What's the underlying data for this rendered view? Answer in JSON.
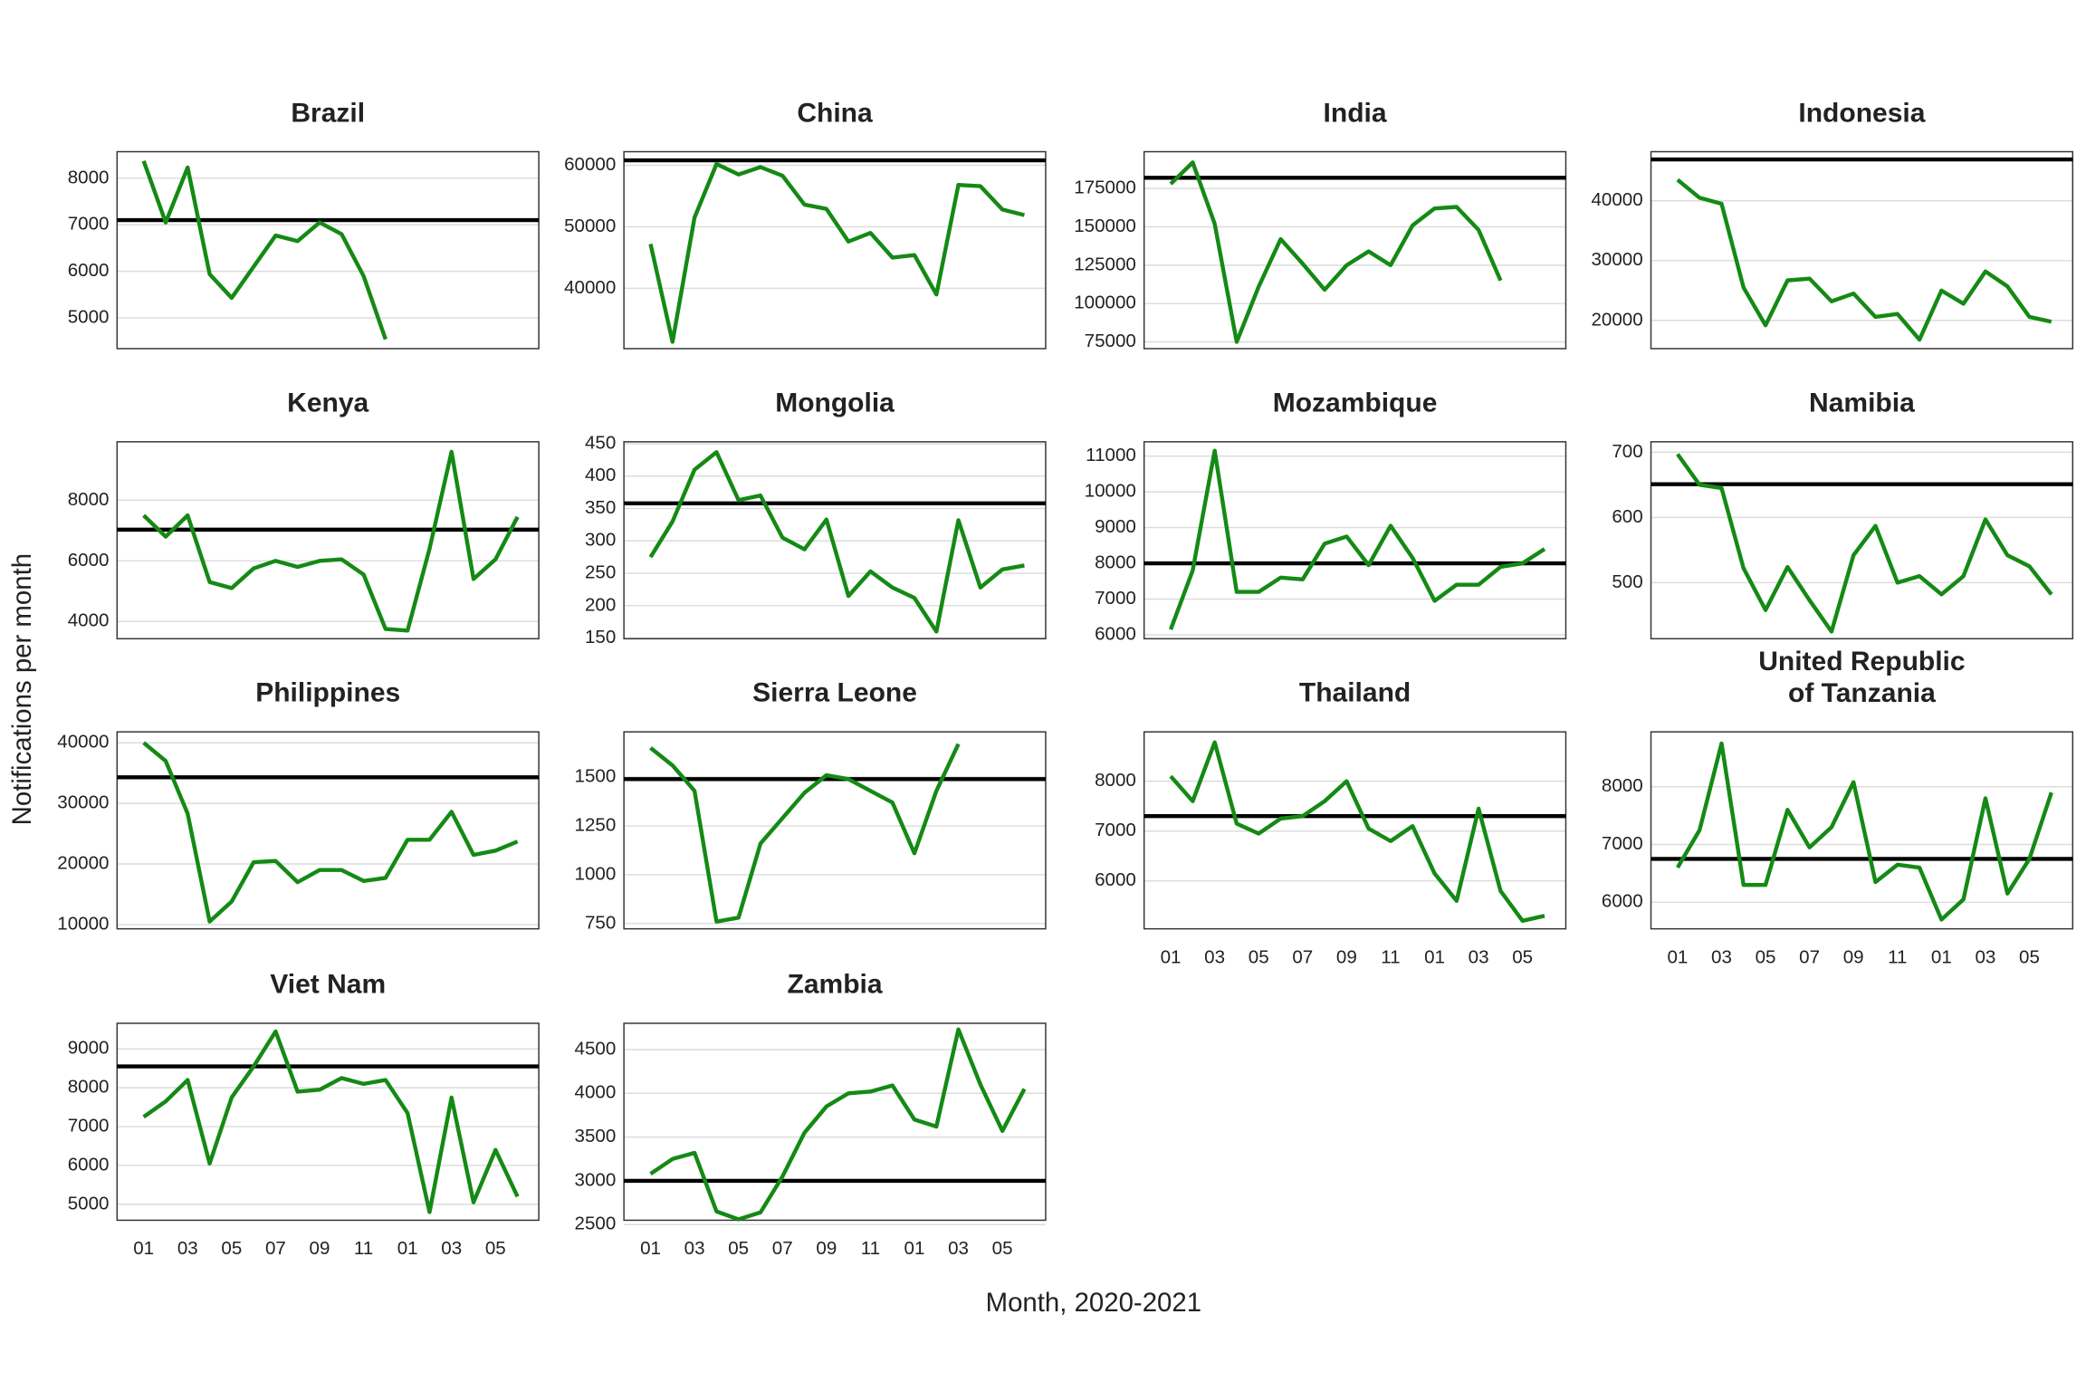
{
  "x_label": "Month, 2020-2021",
  "y_label": "Notifications per month",
  "chart_data": [
    {
      "type": "line",
      "title": "Brazil",
      "color": "#148a14",
      "hline": 7100,
      "hline_color": "#000000",
      "grid": true,
      "values": [
        8370,
        7050,
        8230,
        5940,
        5430,
        6100,
        6770,
        6650,
        7050,
        6800,
        5900,
        4540
      ],
      "ylim": [
        4340,
        8570
      ],
      "yticks": [
        5000,
        6000,
        7000,
        8000
      ]
    },
    {
      "type": "line",
      "title": "China",
      "color": "#148a14",
      "hline": 60800,
      "hline_color": "#000000",
      "grid": true,
      "values": [
        47200,
        31300,
        51500,
        60200,
        58500,
        59700,
        58300,
        53600,
        52900,
        47600,
        49000,
        45000,
        45400,
        39000,
        56800,
        56600,
        52800,
        51900
      ],
      "ylim": [
        30200,
        62200
      ],
      "yticks": [
        40000,
        50000,
        60000
      ]
    },
    {
      "type": "line",
      "title": "India",
      "color": "#148a14",
      "hline": 182000,
      "hline_color": "#000000",
      "grid": true,
      "values": [
        178000,
        192000,
        152000,
        75000,
        111000,
        142000,
        126000,
        109000,
        125000,
        134000,
        125000,
        151000,
        162000,
        163000,
        148000,
        115000
      ],
      "ylim": [
        70600,
        199000
      ],
      "yticks": [
        75000,
        100000,
        125000,
        150000,
        175000
      ]
    },
    {
      "type": "line",
      "title": "Indonesia",
      "color": "#148a14",
      "hline": 46900,
      "hline_color": "#000000",
      "grid": true,
      "values": [
        43500,
        40500,
        39500,
        25500,
        19200,
        26700,
        27000,
        23200,
        24500,
        20600,
        21100,
        16800,
        25000,
        22800,
        28200,
        25700,
        20600,
        19800
      ],
      "ylim": [
        15300,
        48200
      ],
      "yticks": [
        20000,
        30000,
        40000
      ]
    },
    {
      "type": "line",
      "title": "Kenya",
      "color": "#148a14",
      "hline": 7030,
      "hline_color": "#000000",
      "grid": true,
      "values": [
        7500,
        6800,
        7500,
        5300,
        5100,
        5750,
        6000,
        5800,
        6000,
        6050,
        5550,
        3750,
        3700,
        6400,
        9600,
        5400,
        6050,
        7450
      ],
      "ylim": [
        3430,
        9930
      ],
      "yticks": [
        4000,
        6000,
        8000
      ]
    },
    {
      "type": "line",
      "title": "Mongolia",
      "color": "#148a14",
      "hline": 358,
      "hline_color": "#000000",
      "grid": true,
      "values": [
        275,
        330,
        410,
        437,
        363,
        370,
        305,
        287,
        333,
        215,
        253,
        228,
        212,
        160,
        332,
        228,
        256,
        262
      ],
      "ylim": [
        149,
        453
      ],
      "yticks": [
        150,
        200,
        250,
        300,
        350,
        400,
        450
      ]
    },
    {
      "type": "line",
      "title": "Mozambique",
      "color": "#148a14",
      "hline": 8000,
      "hline_color": "#000000",
      "grid": true,
      "values": [
        6150,
        7800,
        11150,
        7200,
        7200,
        7600,
        7550,
        8550,
        8750,
        7950,
        9050,
        8150,
        6950,
        7400,
        7400,
        7900,
        8000,
        8400
      ],
      "ylim": [
        5890,
        11400
      ],
      "yticks": [
        6000,
        7000,
        8000,
        9000,
        10000,
        11000
      ]
    },
    {
      "type": "line",
      "title": "Namibia",
      "color": "#148a14",
      "hline": 651,
      "hline_color": "#000000",
      "grid": true,
      "values": [
        697,
        650,
        645,
        522,
        458,
        524,
        473,
        425,
        542,
        587,
        500,
        510,
        482,
        510,
        597,
        542,
        525,
        482
      ],
      "ylim": [
        414,
        716
      ],
      "yticks": [
        500,
        600,
        700
      ]
    },
    {
      "type": "line",
      "title": "Philippines",
      "color": "#148a14",
      "hline": 34300,
      "hline_color": "#000000",
      "grid": true,
      "values": [
        40000,
        37000,
        28300,
        10500,
        13800,
        20300,
        20500,
        17000,
        19000,
        19000,
        17200,
        17700,
        24000,
        24000,
        28600,
        21500,
        22200,
        23700
      ],
      "ylim": [
        9300,
        41800
      ],
      "yticks": [
        10000,
        20000,
        30000,
        40000
      ]
    },
    {
      "type": "line",
      "title": "Sierra Leone",
      "color": "#148a14",
      "hline": 1490,
      "hline_color": "#000000",
      "grid": true,
      "values": [
        1650,
        1560,
        1430,
        760,
        780,
        1160,
        1290,
        1420,
        1510,
        1490,
        1430,
        1370,
        1110,
        1430,
        1670
      ],
      "ylim": [
        723,
        1732
      ],
      "yticks": [
        750,
        1000,
        1250,
        1500
      ]
    },
    {
      "type": "line",
      "title": "Thailand",
      "color": "#148a14",
      "hline": 7300,
      "hline_color": "#000000",
      "grid": true,
      "categories": [
        "01",
        null,
        "03",
        null,
        "05",
        null,
        "07",
        null,
        "09",
        null,
        "11",
        null,
        "01",
        null,
        "03",
        null,
        "05",
        null
      ],
      "values": [
        8100,
        7600,
        8780,
        7150,
        6950,
        7250,
        7300,
        7600,
        8000,
        7050,
        6800,
        7100,
        6150,
        5600,
        7450,
        5800,
        5200,
        5300
      ],
      "ylim": [
        5040,
        8990
      ],
      "yticks": [
        6000,
        7000,
        8000
      ]
    },
    {
      "type": "line",
      "title": "United Republic\nof Tanzania",
      "color": "#148a14",
      "hline": 6750,
      "hline_color": "#000000",
      "grid": true,
      "categories": [
        "01",
        null,
        "03",
        null,
        "05",
        null,
        "07",
        null,
        "09",
        null,
        "11",
        null,
        "01",
        null,
        "03",
        null,
        "05",
        null
      ],
      "values": [
        6600,
        7250,
        8750,
        6300,
        6300,
        7600,
        6950,
        7300,
        8080,
        6350,
        6650,
        6600,
        5700,
        6050,
        7800,
        6150,
        6750,
        7900
      ],
      "ylim": [
        5540,
        8950
      ],
      "yticks": [
        6000,
        7000,
        8000
      ]
    },
    {
      "type": "line",
      "title": "Viet Nam",
      "color": "#148a14",
      "hline": 8550,
      "hline_color": "#000000",
      "grid": true,
      "categories": [
        "01",
        null,
        "03",
        null,
        "05",
        null,
        "07",
        null,
        "09",
        null,
        "11",
        null,
        "01",
        null,
        "03",
        null,
        "05",
        null
      ],
      "values": [
        7250,
        7650,
        8200,
        6050,
        7750,
        8550,
        9450,
        7900,
        7950,
        8250,
        8100,
        8200,
        7350,
        4800,
        7750,
        5050,
        6400,
        5200
      ],
      "ylim": [
        4590,
        9660
      ],
      "yticks": [
        5000,
        6000,
        7000,
        8000,
        9000
      ]
    },
    {
      "type": "line",
      "title": "Zambia",
      "color": "#148a14",
      "hline": 3000,
      "hline_color": "#000000",
      "grid": true,
      "categories": [
        "01",
        null,
        "03",
        null,
        "05",
        null,
        "07",
        null,
        "09",
        null,
        "11",
        null,
        "01",
        null,
        "03",
        null,
        "05",
        null
      ],
      "values": [
        3080,
        3250,
        3320,
        2650,
        2560,
        2640,
        3050,
        3550,
        3850,
        4000,
        4020,
        4090,
        3700,
        3620,
        4730,
        4100,
        3570,
        4050
      ],
      "ylim": [
        2550,
        4800
      ],
      "yticks": [
        2500,
        3000,
        3500,
        4000,
        4500
      ]
    }
  ]
}
